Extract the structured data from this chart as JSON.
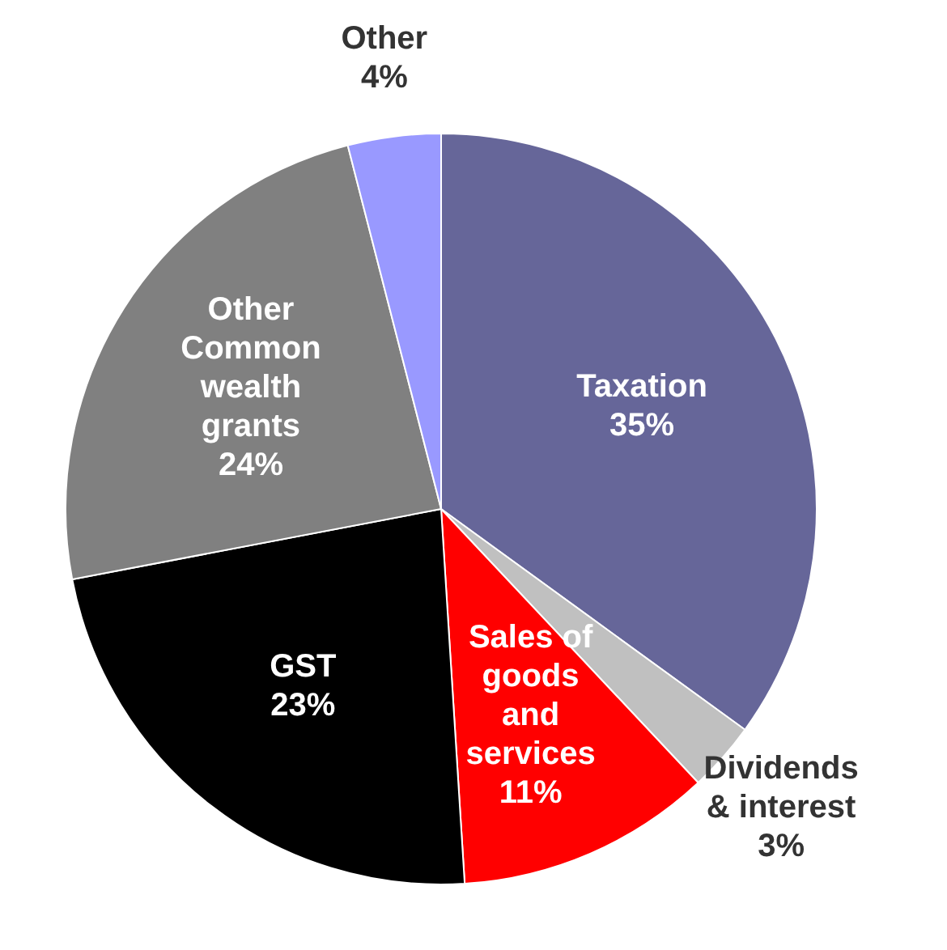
{
  "chart_data": {
    "type": "pie",
    "categories": [
      "Taxation",
      "Dividends & interest",
      "Sales of goods and services",
      "GST",
      "Other Common wealth grants",
      "Other"
    ],
    "values": [
      35,
      3,
      11,
      23,
      24,
      4
    ],
    "colors": [
      "#666699",
      "#c0c0c0",
      "#ff0000",
      "#000000",
      "#808080",
      "#9999ff"
    ],
    "value_labels": [
      "35%",
      "3%",
      "11%",
      "23%",
      "24%",
      "4%"
    ],
    "legend": false
  }
}
